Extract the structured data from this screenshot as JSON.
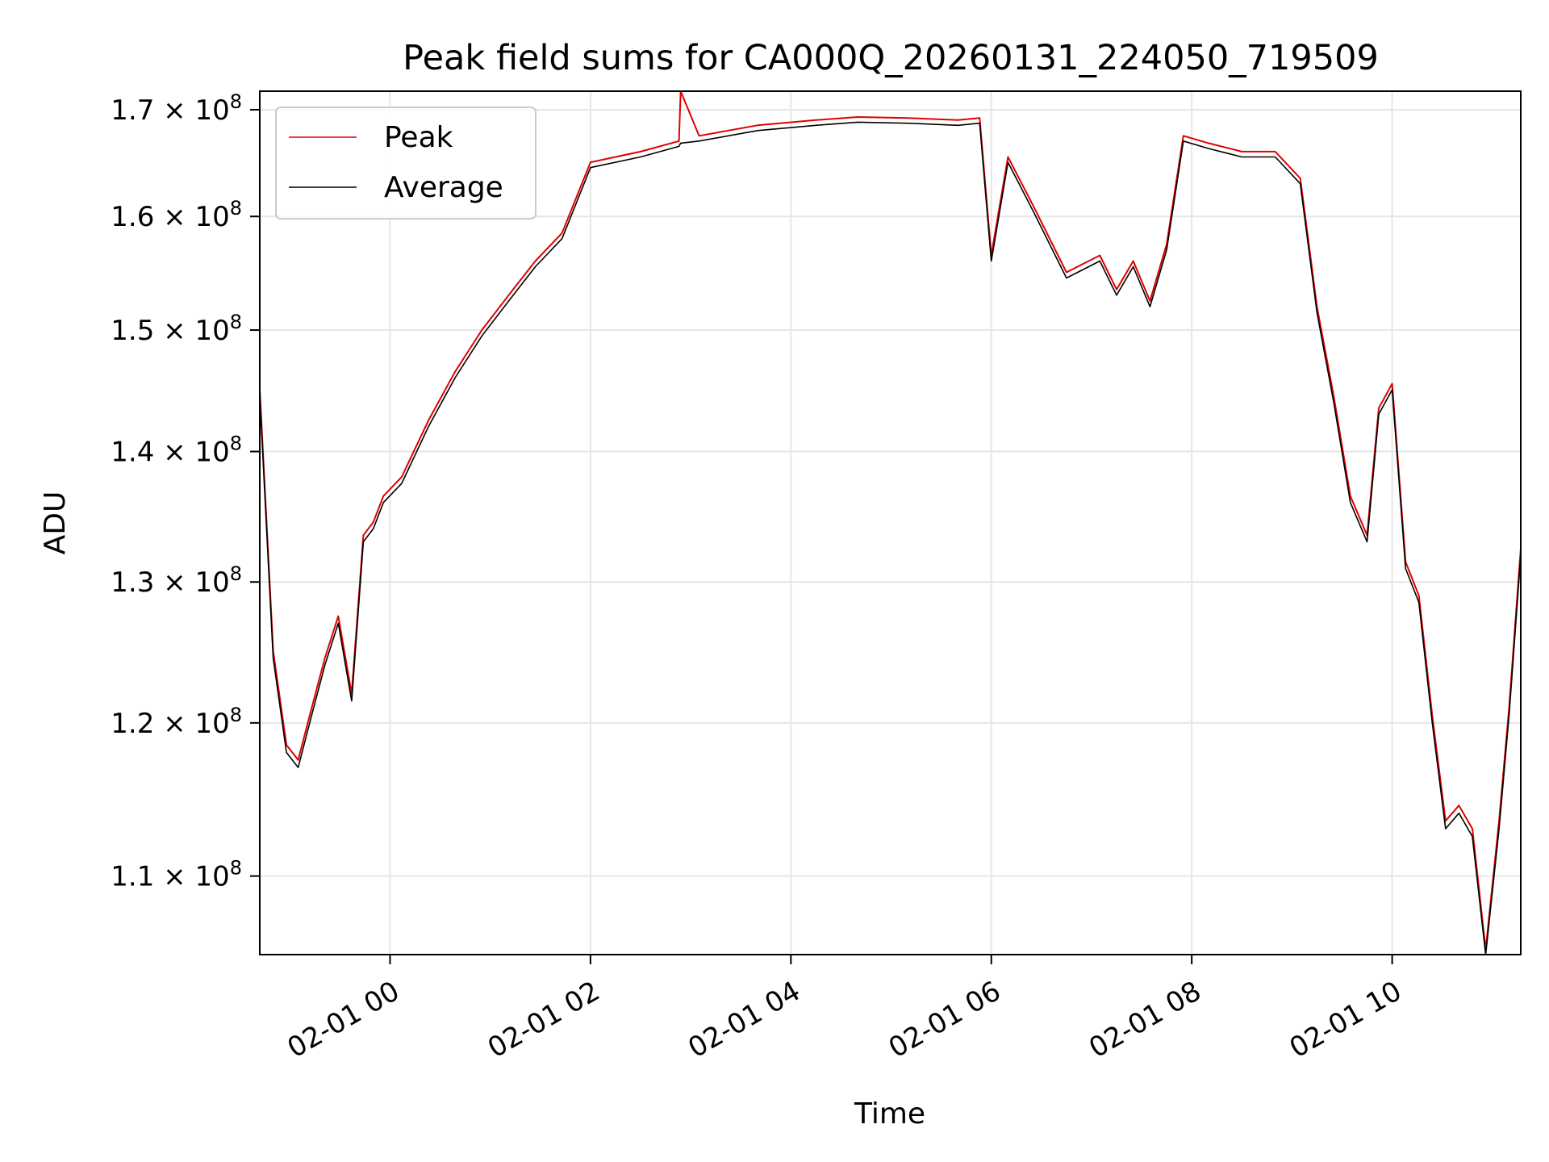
{
  "chart_data": {
    "type": "line",
    "title": "Peak field sums for CA000Q_20260131_224050_719509",
    "xlabel": "Time",
    "ylabel": "ADU",
    "yscale": "log",
    "grid": true,
    "legend_position": "top-left",
    "x_ticks": [
      {
        "value": "2026-02-01T00:00",
        "label": "02-01 00"
      },
      {
        "value": "2026-02-01T02:00",
        "label": "02-01 02"
      },
      {
        "value": "2026-02-01T04:00",
        "label": "02-01 04"
      },
      {
        "value": "2026-02-01T06:00",
        "label": "02-01 06"
      },
      {
        "value": "2026-02-01T08:00",
        "label": "02-01 08"
      },
      {
        "value": "2026-02-01T10:00",
        "label": "02-01 10"
      }
    ],
    "y_ticks": [
      {
        "value": 110000000,
        "mantissa": "1.1",
        "exp": "8"
      },
      {
        "value": 120000000,
        "mantissa": "1.2",
        "exp": "8"
      },
      {
        "value": 130000000,
        "mantissa": "1.3",
        "exp": "8"
      },
      {
        "value": 140000000,
        "mantissa": "1.4",
        "exp": "8"
      },
      {
        "value": 150000000,
        "mantissa": "1.5",
        "exp": "8"
      },
      {
        "value": 160000000,
        "mantissa": "1.6",
        "exp": "8"
      },
      {
        "value": 170000000,
        "mantissa": "1.7",
        "exp": "8"
      }
    ],
    "xlim": [
      "2026-01-31T22:42",
      "2026-02-01T11:17"
    ],
    "ylim": [
      105200000,
      171800000
    ],
    "series": [
      {
        "name": "Peak",
        "color": "#e00000",
        "x": [
          "2026-01-31T22:42",
          "2026-01-31T22:50",
          "2026-01-31T22:58",
          "2026-01-31T23:05",
          "2026-01-31T23:13",
          "2026-01-31T23:21",
          "2026-01-31T23:29",
          "2026-01-31T23:37",
          "2026-01-31T23:44",
          "2026-01-31T23:50",
          "2026-01-31T23:56",
          "2026-02-01T00:07",
          "2026-02-01T00:23",
          "2026-02-01T00:39",
          "2026-02-01T00:55",
          "2026-02-01T01:11",
          "2026-02-01T01:27",
          "2026-02-01T01:43",
          "2026-02-01T02:00",
          "2026-02-01T02:30",
          "2026-02-01T02:53",
          "2026-02-01T02:54",
          "2026-02-01T03:05",
          "2026-02-01T03:40",
          "2026-02-01T04:15",
          "2026-02-01T04:40",
          "2026-02-01T05:10",
          "2026-02-01T05:40",
          "2026-02-01T05:53",
          "2026-02-01T06:00",
          "2026-02-01T06:10",
          "2026-02-01T06:25",
          "2026-02-01T06:45",
          "2026-02-01T07:05",
          "2026-02-01T07:15",
          "2026-02-01T07:25",
          "2026-02-01T07:35",
          "2026-02-01T07:45",
          "2026-02-01T07:55",
          "2026-02-01T08:10",
          "2026-02-01T08:30",
          "2026-02-01T08:50",
          "2026-02-01T09:05",
          "2026-02-01T09:15",
          "2026-02-01T09:25",
          "2026-02-01T09:35",
          "2026-02-01T09:45",
          "2026-02-01T09:52",
          "2026-02-01T10:00",
          "2026-02-01T10:08",
          "2026-02-01T10:16",
          "2026-02-01T10:24",
          "2026-02-01T10:32",
          "2026-02-01T10:40",
          "2026-02-01T10:48",
          "2026-02-01T10:56",
          "2026-02-01T11:04",
          "2026-02-01T11:10",
          "2026-02-01T11:17"
        ],
        "values": [
          145000000,
          125000000,
          118500000,
          117500000,
          121000000,
          124500000,
          127500000,
          122000000,
          133500000,
          134500000,
          136500000,
          138000000,
          142500000,
          146500000,
          150000000,
          153000000,
          156000000,
          158500000,
          165000000,
          166000000,
          167000000,
          171800000,
          167500000,
          168500000,
          169000000,
          169300000,
          169200000,
          169000000,
          169200000,
          156500000,
          165500000,
          161000000,
          155000000,
          156500000,
          153500000,
          156000000,
          152500000,
          157500000,
          167500000,
          166800000,
          166000000,
          166000000,
          163500000,
          152000000,
          144500000,
          136500000,
          133500000,
          143500000,
          145500000,
          131500000,
          129000000,
          120500000,
          113500000,
          114500000,
          113000000,
          105500000,
          113500000,
          121000000,
          132500000
        ]
      },
      {
        "name": "Average",
        "color": "#000000",
        "x": [
          "2026-01-31T22:42",
          "2026-01-31T22:50",
          "2026-01-31T22:58",
          "2026-01-31T23:05",
          "2026-01-31T23:13",
          "2026-01-31T23:21",
          "2026-01-31T23:29",
          "2026-01-31T23:37",
          "2026-01-31T23:44",
          "2026-01-31T23:50",
          "2026-01-31T23:56",
          "2026-02-01T00:07",
          "2026-02-01T00:23",
          "2026-02-01T00:39",
          "2026-02-01T00:55",
          "2026-02-01T01:11",
          "2026-02-01T01:27",
          "2026-02-01T01:43",
          "2026-02-01T02:00",
          "2026-02-01T02:30",
          "2026-02-01T02:53",
          "2026-02-01T02:54",
          "2026-02-01T03:05",
          "2026-02-01T03:40",
          "2026-02-01T04:15",
          "2026-02-01T04:40",
          "2026-02-01T05:10",
          "2026-02-01T05:40",
          "2026-02-01T05:53",
          "2026-02-01T06:00",
          "2026-02-01T06:10",
          "2026-02-01T06:25",
          "2026-02-01T06:45",
          "2026-02-01T07:05",
          "2026-02-01T07:15",
          "2026-02-01T07:25",
          "2026-02-01T07:35",
          "2026-02-01T07:45",
          "2026-02-01T07:55",
          "2026-02-01T08:10",
          "2026-02-01T08:30",
          "2026-02-01T08:50",
          "2026-02-01T09:05",
          "2026-02-01T09:15",
          "2026-02-01T09:25",
          "2026-02-01T09:35",
          "2026-02-01T09:45",
          "2026-02-01T09:52",
          "2026-02-01T10:00",
          "2026-02-01T10:08",
          "2026-02-01T10:16",
          "2026-02-01T10:24",
          "2026-02-01T10:32",
          "2026-02-01T10:40",
          "2026-02-01T10:48",
          "2026-02-01T10:56",
          "2026-02-01T11:04",
          "2026-02-01T11:10",
          "2026-02-01T11:17"
        ],
        "values": [
          144500000,
          124500000,
          118000000,
          117000000,
          120500000,
          124000000,
          127000000,
          121500000,
          133000000,
          134000000,
          136000000,
          137500000,
          142000000,
          146000000,
          149500000,
          152500000,
          155500000,
          158000000,
          164500000,
          165500000,
          166500000,
          166800000,
          167000000,
          168000000,
          168500000,
          168800000,
          168700000,
          168500000,
          168700000,
          156000000,
          165000000,
          160500000,
          154500000,
          156000000,
          153000000,
          155500000,
          152000000,
          157000000,
          167000000,
          166300000,
          165500000,
          165500000,
          163000000,
          151500000,
          144000000,
          136000000,
          133000000,
          143000000,
          145000000,
          131000000,
          128500000,
          120000000,
          113000000,
          114000000,
          112500000,
          105200000,
          113000000,
          120500000,
          132000000
        ]
      }
    ]
  }
}
